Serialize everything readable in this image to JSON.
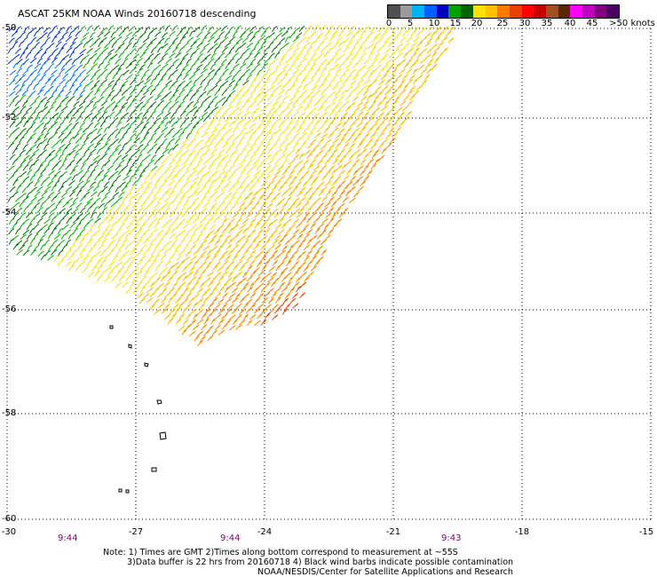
{
  "title": "ASCAT 25KM NOAA Winds 20160718 descending",
  "colorbar": {
    "colors": [
      "#505050",
      "#9a9a9a",
      "#00b4f0",
      "#0060ff",
      "#0000c0",
      "#00a000",
      "#006400",
      "#ffe000",
      "#ffc000",
      "#ff7a00",
      "#e84000",
      "#ff0000",
      "#c80000",
      "#a05020",
      "#5a2800",
      "#ff00ff",
      "#c000c0",
      "#800080",
      "#4b0060"
    ],
    "labels": [
      "0",
      "5",
      "10",
      "15",
      "20",
      "25",
      "30",
      "35",
      "40",
      "45",
      ">50 knots"
    ]
  },
  "axes": {
    "lat_labels": [
      "-50",
      "-52",
      "-54",
      "-56",
      "-58",
      "-60"
    ],
    "lon_labels": [
      "-30",
      "-27",
      "-24",
      "-21",
      "-18",
      "-15"
    ]
  },
  "times": [
    "9:44",
    "9:44",
    "9:43"
  ],
  "notes": {
    "line1": "Note: 1) Times are GMT 2)Times along bottom correspond to measurement at ~55S",
    "line2": "3)Data buffer is 22 hrs from 20160718 4) Black wind barbs indicate possible contamination",
    "line3": "NOAA/NESDIS/Center for Satellite Applications and Research"
  }
}
